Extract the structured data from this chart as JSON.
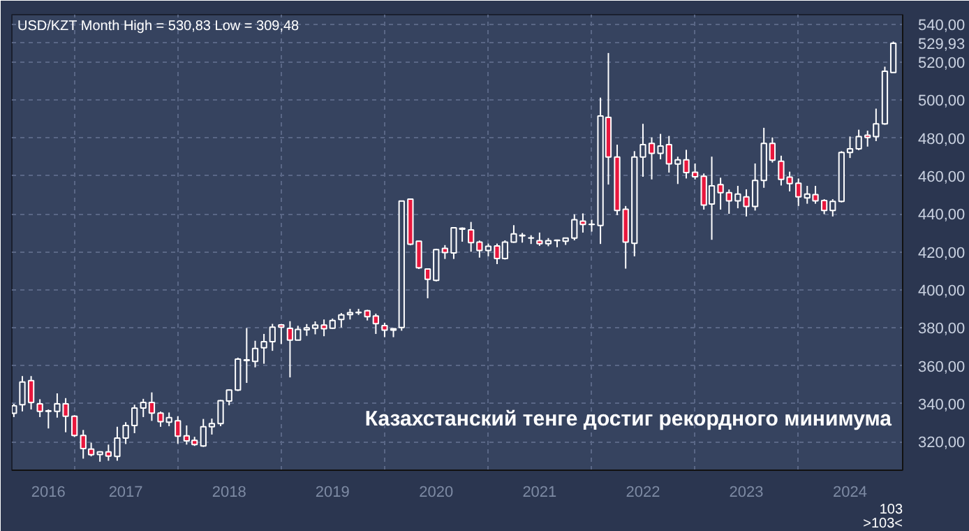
{
  "chart_data": {
    "type": "candlestick",
    "title": "USD/KZT Month High = 530,83 Low = 309,48",
    "annotations": [
      "Казахстанский тенге достиг рекордного минимума",
      "103",
      ">103<"
    ],
    "x": [
      "2016-06",
      "2016-07",
      "2016-08",
      "2016-09",
      "2016-10",
      "2016-11",
      "2016-12",
      "2017-01",
      "2017-02",
      "2017-03",
      "2017-04",
      "2017-05",
      "2017-06",
      "2017-07",
      "2017-08",
      "2017-09",
      "2017-10",
      "2017-11",
      "2017-12",
      "2018-01",
      "2018-02",
      "2018-03",
      "2018-04",
      "2018-05",
      "2018-06",
      "2018-07",
      "2018-08",
      "2018-09",
      "2018-10",
      "2018-11",
      "2018-12",
      "2019-01",
      "2019-02",
      "2019-03",
      "2019-04",
      "2019-05",
      "2019-06",
      "2019-07",
      "2019-08",
      "2019-09",
      "2019-10",
      "2019-11",
      "2019-12",
      "2020-01",
      "2020-02",
      "2020-03",
      "2020-04",
      "2020-05",
      "2020-06",
      "2020-07",
      "2020-08",
      "2020-09",
      "2020-10",
      "2020-11",
      "2020-12",
      "2021-01",
      "2021-02",
      "2021-03",
      "2021-04",
      "2021-05",
      "2021-06",
      "2021-07",
      "2021-08",
      "2021-09",
      "2021-10",
      "2021-11",
      "2021-12",
      "2022-01",
      "2022-02",
      "2022-03",
      "2022-04",
      "2022-05",
      "2022-06",
      "2022-07",
      "2022-08",
      "2022-09",
      "2022-10",
      "2022-11",
      "2022-12",
      "2023-01",
      "2023-02",
      "2023-03",
      "2023-04",
      "2023-05",
      "2023-06",
      "2023-07",
      "2023-08",
      "2023-09",
      "2023-10",
      "2023-11",
      "2023-12",
      "2024-01",
      "2024-02",
      "2024-03",
      "2024-04",
      "2024-05",
      "2024-06",
      "2024-07",
      "2024-08",
      "2024-09",
      "2024-10",
      "2024-11",
      "2024-12"
    ],
    "ohlc": [
      [
        335,
        340,
        333,
        339
      ],
      [
        339.5,
        354.6,
        336,
        351.5
      ],
      [
        352.2,
        354.6,
        337,
        340.7
      ],
      [
        340,
        342.4,
        333,
        336
      ],
      [
        336,
        337,
        327,
        336.3
      ],
      [
        336,
        345.5,
        332.7,
        340
      ],
      [
        340,
        343,
        325,
        333.4
      ],
      [
        333.4,
        334,
        322.5,
        323.3
      ],
      [
        323.3,
        326.2,
        311.1,
        316.4
      ],
      [
        316.1,
        319.5,
        312.3,
        313.2
      ],
      [
        313.3,
        315,
        309.48,
        314.7
      ],
      [
        314.7,
        318.5,
        310,
        312.5
      ],
      [
        312.3,
        327.9,
        310,
        321.9
      ],
      [
        321.9,
        330.3,
        318.8,
        328.6
      ],
      [
        328.6,
        339.5,
        324.5,
        337.8
      ],
      [
        337.8,
        342.6,
        333,
        340.7
      ],
      [
        340.7,
        346,
        331,
        335.1
      ],
      [
        335.1,
        335.9,
        327.9,
        330.6
      ],
      [
        330.3,
        335.4,
        328.2,
        332.7
      ],
      [
        331,
        333.4,
        319,
        322.9
      ],
      [
        323.1,
        328.6,
        318.5,
        320.5
      ],
      [
        320.7,
        322.6,
        317.8,
        318.5
      ],
      [
        317.8,
        332,
        317.3,
        327.9
      ],
      [
        327.9,
        332.2,
        323.8,
        329.6
      ],
      [
        329.6,
        342,
        328.2,
        341.6
      ],
      [
        341.4,
        347.5,
        339.2,
        347.2
      ],
      [
        347.2,
        364.3,
        346.7,
        363.5
      ],
      [
        362.8,
        379.9,
        351,
        363.2
      ],
      [
        362.3,
        373.2,
        359.2,
        369.1
      ],
      [
        369.5,
        376.8,
        361.1,
        372.7
      ],
      [
        372.7,
        382.1,
        367.9,
        380.4
      ],
      [
        381.6,
        382,
        371.5,
        380.4
      ],
      [
        379.7,
        383.5,
        353.9,
        373.6
      ],
      [
        373.6,
        381.1,
        373.4,
        379.2
      ],
      [
        379,
        382,
        375.8,
        380
      ],
      [
        379.8,
        383.4,
        376.6,
        381.5
      ],
      [
        381.5,
        384.4,
        375.6,
        379.5
      ],
      [
        379.8,
        384.9,
        379.5,
        383.9
      ],
      [
        384.4,
        387.8,
        380.2,
        386.8
      ],
      [
        387,
        390,
        384.4,
        388
      ],
      [
        388,
        390,
        386.8,
        388.2
      ],
      [
        389,
        389.5,
        383.9,
        385.9
      ],
      [
        386.3,
        387.5,
        376.8,
        382.2
      ],
      [
        381.2,
        382.7,
        375.1,
        378.8
      ],
      [
        378.8,
        379.8,
        375.1,
        379.5
      ],
      [
        380.2,
        447,
        378.5,
        446.8
      ],
      [
        447.8,
        448,
        423.5,
        424.1
      ],
      [
        425.6,
        425.8,
        411,
        411.7
      ],
      [
        411,
        411.2,
        395.6,
        405.6
      ],
      [
        405,
        421.7,
        404.5,
        421.2
      ],
      [
        421.9,
        423.6,
        416.3,
        419.7
      ],
      [
        419.5,
        433,
        416.3,
        432.7
      ],
      [
        432.5,
        432.9,
        425.4,
        432
      ],
      [
        431.6,
        435.8,
        420.1,
        424.9
      ],
      [
        425.2,
        426,
        417,
        420.8
      ],
      [
        420.8,
        424.4,
        417.7,
        423
      ],
      [
        423.2,
        424.4,
        413.6,
        416.5
      ],
      [
        416.5,
        426.1,
        416,
        425.2
      ],
      [
        425.2,
        434.1,
        424.8,
        429.5
      ],
      [
        428.5,
        430,
        424.9,
        428.8
      ],
      [
        427.4,
        428.8,
        424.2,
        427.3
      ],
      [
        425.9,
        430.2,
        423.2,
        424.4
      ],
      [
        424.4,
        427.3,
        423,
        425.9
      ],
      [
        426,
        426.5,
        422.5,
        426.2
      ],
      [
        425.6,
        427.5,
        423.7,
        427.3
      ],
      [
        427.3,
        439.8,
        426.1,
        437
      ],
      [
        436.2,
        440.3,
        430.2,
        434.5
      ],
      [
        434.5,
        437,
        430.7,
        434.6
      ],
      [
        433.9,
        501.3,
        424.2,
        491.6
      ],
      [
        490.9,
        524.8,
        455.5,
        470
      ],
      [
        470,
        476.5,
        439.4,
        441.8
      ],
      [
        442.5,
        444.2,
        411.2,
        425.2
      ],
      [
        424.5,
        473.1,
        417.7,
        470
      ],
      [
        470,
        487.5,
        459.6,
        476.5
      ],
      [
        477.2,
        480.3,
        458.2,
        471.9
      ],
      [
        471.9,
        482.2,
        468.8,
        475.8
      ],
      [
        476.5,
        481.1,
        461.8,
        466.4
      ],
      [
        466.3,
        470.2,
        455.8,
        468.5
      ],
      [
        468.5,
        473.8,
        458.7,
        461.8
      ],
      [
        462,
        466.6,
        458.2,
        459.6
      ],
      [
        459.9,
        461.3,
        442.3,
        444.7
      ],
      [
        445.2,
        470.2,
        426.4,
        454.8
      ],
      [
        455.5,
        459.1,
        442.3,
        451.2
      ],
      [
        451.2,
        452.9,
        440.1,
        446.9
      ],
      [
        446.9,
        454.8,
        443,
        450.5
      ],
      [
        449,
        453,
        438.7,
        444
      ],
      [
        444,
        466.6,
        441.8,
        457.7
      ],
      [
        457.7,
        485.4,
        453.8,
        477.2
      ],
      [
        477.2,
        480.3,
        467.1,
        468.3
      ],
      [
        467.8,
        470.7,
        455,
        458.2
      ],
      [
        459.4,
        462.3,
        451.9,
        456
      ],
      [
        456.2,
        458.7,
        444.2,
        449
      ],
      [
        448.5,
        454.8,
        445.4,
        450.5
      ],
      [
        450.2,
        454.8,
        445.4,
        446.9
      ],
      [
        447.1,
        447.8,
        439.9,
        441.8
      ],
      [
        441.8,
        447.8,
        438.7,
        446.6
      ],
      [
        446.6,
        473.1,
        446.1,
        472.4
      ],
      [
        472.4,
        480.8,
        469.5,
        474.3
      ],
      [
        474.3,
        484.4,
        473.6,
        480.8
      ],
      [
        481.5,
        483.9,
        475.5,
        480.3
      ],
      [
        480.8,
        495.5,
        478.4,
        487.5
      ],
      [
        487.5,
        517.6,
        487,
        515.2
      ],
      [
        514.5,
        530.83,
        514.5,
        529.93
      ]
    ],
    "xlim": [
      "2016-05-25",
      "2025-01-03"
    ],
    "xticks": [
      {
        "value": "2016-10",
        "label": "2016"
      },
      {
        "value": "2017-07",
        "label": "2017"
      },
      {
        "value": "2018-07",
        "label": "2018"
      },
      {
        "value": "2019-07",
        "label": "2019"
      },
      {
        "value": "2020-07",
        "label": "2020"
      },
      {
        "value": "2021-07",
        "label": "2021"
      },
      {
        "value": "2022-07",
        "label": "2022"
      },
      {
        "value": "2023-07",
        "label": "2023"
      },
      {
        "value": "2024-07",
        "label": "2024"
      },
      {
        "value": "2017-01",
        "label": null
      },
      {
        "value": "2018-01",
        "label": null
      },
      {
        "value": "2019-01",
        "label": null
      },
      {
        "value": "2020-01",
        "label": null
      },
      {
        "value": "2021-01",
        "label": null
      },
      {
        "value": "2022-01",
        "label": null
      },
      {
        "value": "2023-01",
        "label": null
      },
      {
        "value": "2024-01",
        "label": null
      }
    ],
    "ylim": [
      305,
      545
    ],
    "yticks": [
      {
        "value": 320,
        "label": "320,00"
      },
      {
        "value": 340,
        "label": "340,00"
      },
      {
        "value": 360,
        "label": "360,00"
      },
      {
        "value": 380,
        "label": "380,00"
      },
      {
        "value": 400,
        "label": "400,00"
      },
      {
        "value": 420,
        "label": "420,00"
      },
      {
        "value": 440,
        "label": "440,00"
      },
      {
        "value": 460,
        "label": "460,00"
      },
      {
        "value": 480,
        "label": "480,00"
      },
      {
        "value": 500,
        "label": "500,00"
      },
      {
        "value": 520,
        "label": "520,00"
      },
      {
        "value": 540,
        "label": "540,00"
      },
      {
        "value": 529.93,
        "label": "529,93"
      }
    ],
    "grid": true
  }
}
